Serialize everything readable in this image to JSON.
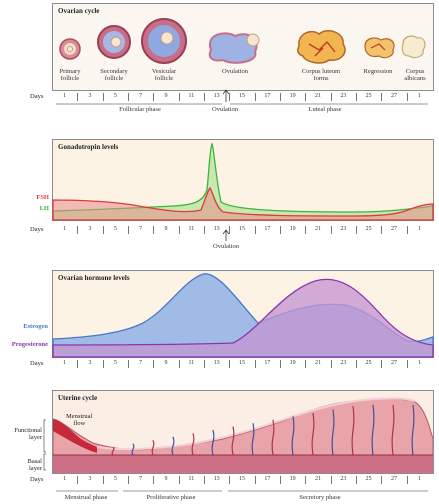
{
  "days_label": "Days",
  "day_ticks": [
    "1",
    "3",
    "5",
    "7",
    "9",
    "11",
    "13",
    "15",
    "17",
    "19",
    "21",
    "23",
    "25",
    "27",
    "1"
  ],
  "ovarian": {
    "title": "Ovarian cycle",
    "stages": [
      "Primary\nfollicle",
      "Secondary\nfollicle",
      "Vesicular\nfollicle",
      "Ovulation",
      "Corpus luteum\nforms",
      "Regression",
      "Corpus\nalbicans"
    ],
    "phases": [
      "Follicular phase",
      "Ovulation",
      "Luteal phase"
    ]
  },
  "gonadotropin": {
    "title": "Gonadotropin levels",
    "fsh": "FSH",
    "lh": "LH",
    "ovulation": "Ovulation",
    "colors": {
      "fsh": "#e0383c",
      "lh": "#3cb53c"
    }
  },
  "hormone": {
    "title": "Ovarian hormone levels",
    "estrogen": "Estrogen",
    "progesterone": "Progesterone",
    "colors": {
      "estrogen": "#4a78c8",
      "progesterone": "#8a35b0"
    }
  },
  "uterine": {
    "title": "Uterine cycle",
    "menstrual_flow": "Menstrual\nflow",
    "functional_layer": "Functional\nlayer",
    "basal_layer": "Basal\nlayer",
    "phases": [
      "Menstrual phase",
      "Proliferative phase",
      "Secretory phase"
    ]
  }
}
